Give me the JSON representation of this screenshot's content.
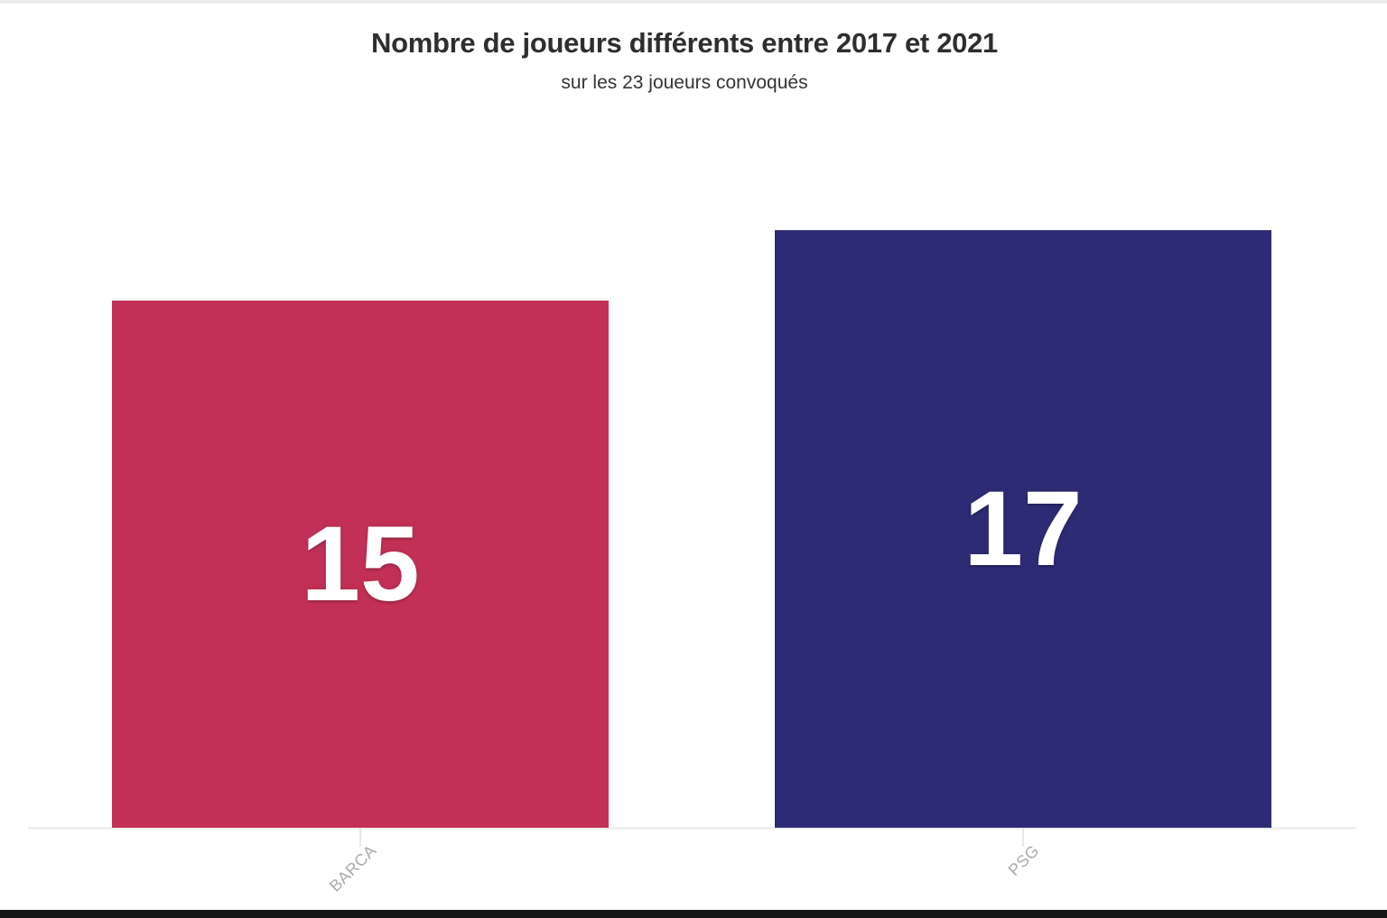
{
  "chart_data": {
    "type": "bar",
    "title": "Nombre de joueurs différents entre 2017 et 2021",
    "subtitle": "sur les 23 joueurs convoqués",
    "categories": [
      "BARCA",
      "PSG"
    ],
    "values": [
      15,
      17
    ],
    "series": [
      {
        "name": "Nombre de joueurs différents",
        "values": [
          15,
          17
        ]
      }
    ],
    "xlabel": "",
    "ylabel": "",
    "ylim": [
      0,
      17
    ],
    "grid": false,
    "legend": false,
    "value_label_position": "center",
    "bar_colors": [
      "#c23155",
      "#2e2b75"
    ],
    "value_label_color": "#ffffff",
    "axis_line_color": "#efefef",
    "category_label_color": "#ababab",
    "title_color": "#2e2e2e"
  }
}
